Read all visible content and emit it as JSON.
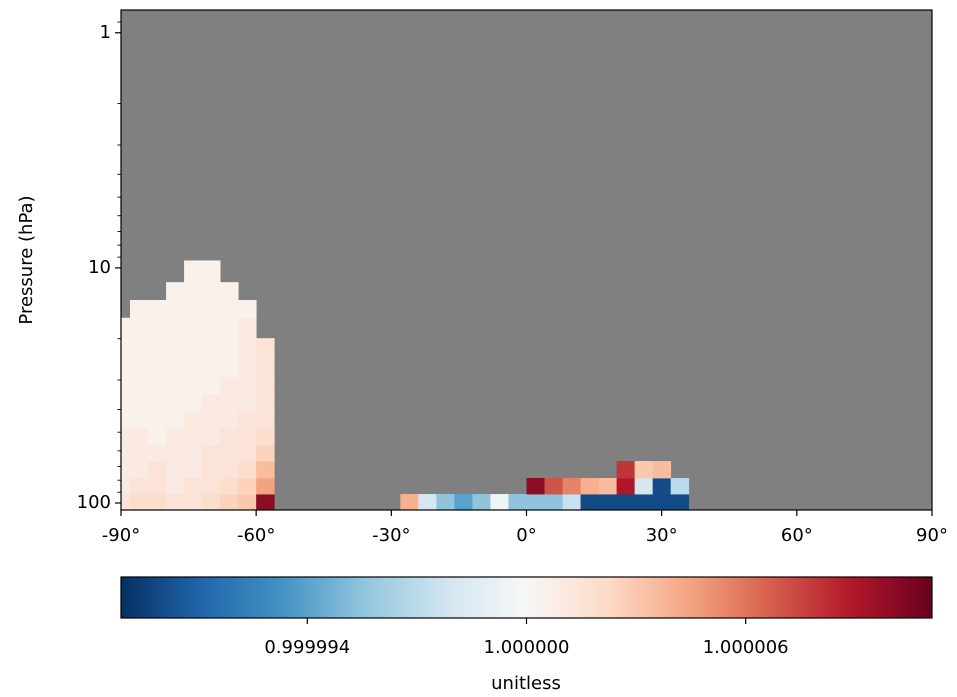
{
  "chart_data": {
    "type": "heatmap",
    "ylabel": "Pressure (hPa)",
    "colorbar_label": "unitless",
    "xlim": [
      -90,
      90
    ],
    "xticks": [
      {
        "value": -90,
        "label": "-90°"
      },
      {
        "value": -60,
        "label": "-60°"
      },
      {
        "value": -30,
        "label": "-30°"
      },
      {
        "value": 0,
        "label": "0°"
      },
      {
        "value": 30,
        "label": "30°"
      },
      {
        "value": 60,
        "label": "60°"
      },
      {
        "value": 90,
        "label": "90°"
      }
    ],
    "ylim": [
      107.1,
      0.8
    ],
    "ylog": true,
    "yticks": [
      1,
      10,
      100
    ],
    "yminorticks": [
      0.9,
      2,
      3,
      4,
      5,
      6,
      7,
      8,
      9,
      20,
      30,
      40,
      50,
      60,
      70,
      80,
      90
    ],
    "nan_color": "#808080",
    "cmap_colors": [
      "#053061",
      "#2166ac",
      "#4393c3",
      "#92c5de",
      "#d1e5f0",
      "#f7f7f7",
      "#fddbc7",
      "#f4a582",
      "#d6604d",
      "#b2182b",
      "#67001f"
    ],
    "clim": [
      0.9999889,
      1.0000111
    ],
    "cticks": [
      0.999994,
      {
        "value": 1,
        "label": "1.000000"
      },
      1.000006
    ],
    "x_edges": [
      -92,
      -88,
      -84,
      -80,
      -76,
      -72,
      -68,
      -64,
      -60,
      -56,
      -52,
      -48,
      -44,
      -40,
      -36,
      -32,
      -28,
      -24,
      -20,
      -16,
      -12,
      -8,
      -4,
      0,
      4,
      8,
      12,
      16,
      20,
      24,
      28,
      32,
      36,
      40,
      44,
      48,
      52,
      56,
      60,
      64,
      68,
      72,
      76,
      80,
      84,
      88,
      92
    ],
    "y_edges": [
      107.1,
      91.6,
      78.3,
      66.3,
      56.6,
      48.0,
      40.6,
      34.4,
      29.1,
      23.9,
      19.9,
      16.3,
      13.7,
      11.5,
      9.3
    ],
    "z": [
      [
        1.0000015,
        1.000002,
        1.000002,
        1.0000015,
        1.0000015,
        1.000002,
        1.0000025,
        1.000003,
        1.00001,
        null,
        null,
        null,
        null,
        null,
        null,
        null,
        1.000004,
        0.999998,
        0.9999955,
        0.999994,
        0.9999955,
        0.9999995,
        0.9999955,
        0.9999955,
        0.9999955,
        0.9999975,
        0.99999,
        0.99999,
        0.99999,
        0.99999,
        0.99999,
        0.99999,
        null,
        null,
        null,
        null,
        null,
        null,
        null,
        null,
        null,
        null,
        null,
        null,
        null,
        null
      ],
      [
        1.000001,
        1.0000015,
        1.0000015,
        1.000001,
        1.0000015,
        1.0000015,
        1.000002,
        1.0000025,
        1.0000045,
        null,
        null,
        null,
        null,
        null,
        null,
        null,
        null,
        null,
        null,
        null,
        null,
        null,
        null,
        1.00001,
        1.000007,
        1.0000055,
        1.000004,
        1.0000035,
        1.000009,
        0.999998,
        0.99999,
        0.999997,
        null,
        null,
        null,
        null,
        null,
        null,
        null,
        null,
        null,
        null,
        null,
        null,
        null,
        null
      ],
      [
        1.000001,
        1.000001,
        1.0000015,
        1.000001,
        1.000001,
        1.0000015,
        1.0000015,
        1.000002,
        1.0000035,
        null,
        null,
        null,
        null,
        null,
        null,
        null,
        null,
        null,
        null,
        null,
        null,
        null,
        null,
        null,
        null,
        null,
        null,
        null,
        1.000008,
        1.000003,
        1.0000035,
        null,
        null,
        null,
        null,
        null,
        null,
        null,
        null,
        null,
        null,
        null,
        null,
        null,
        null,
        null
      ],
      [
        1.000001,
        1.000001,
        1.000001,
        1.000001,
        1.000001,
        1.0000015,
        1.0000015,
        1.0000015,
        1.0000025,
        null,
        null,
        null,
        null,
        null,
        null,
        null,
        null,
        null,
        null,
        null,
        null,
        null,
        null,
        null,
        null,
        null,
        null,
        null,
        null,
        null,
        null,
        null,
        null,
        null,
        null,
        null,
        null,
        null,
        null,
        null,
        null,
        null,
        null,
        null,
        null,
        null
      ],
      [
        1.000001,
        1.000001,
        1.0000005,
        1.000001,
        1.000001,
        1.000001,
        1.0000015,
        1.0000015,
        1.000002,
        null,
        null,
        null,
        null,
        null,
        null,
        null,
        null,
        null,
        null,
        null,
        null,
        null,
        null,
        null,
        null,
        null,
        null,
        null,
        null,
        null,
        null,
        null,
        null,
        null,
        null,
        null,
        null,
        null,
        null,
        null,
        null,
        null,
        null,
        null,
        null,
        null
      ],
      [
        1.0000005,
        1.0000005,
        1.0000005,
        1.0000005,
        1.000001,
        1.000001,
        1.000001,
        1.0000015,
        1.0000015,
        null,
        null,
        null,
        null,
        null,
        null,
        null,
        null,
        null,
        null,
        null,
        null,
        null,
        null,
        null,
        null,
        null,
        null,
        null,
        null,
        null,
        null,
        null,
        null,
        null,
        null,
        null,
        null,
        null,
        null,
        null,
        null,
        null,
        null,
        null,
        null,
        null
      ],
      [
        1.0000005,
        1.0000005,
        1.0000005,
        1.0000005,
        1.0000005,
        1.000001,
        1.000001,
        1.000001,
        1.0000015,
        null,
        null,
        null,
        null,
        null,
        null,
        null,
        null,
        null,
        null,
        null,
        null,
        null,
        null,
        null,
        null,
        null,
        null,
        null,
        null,
        null,
        null,
        null,
        null,
        null,
        null,
        null,
        null,
        null,
        null,
        null,
        null,
        null,
        null,
        null,
        null,
        null
      ],
      [
        1.0000005,
        1.0000005,
        1.0000005,
        1.0000005,
        1.0000005,
        1.0000005,
        1.000001,
        1.000001,
        1.0000015,
        null,
        null,
        null,
        null,
        null,
        null,
        null,
        null,
        null,
        null,
        null,
        null,
        null,
        null,
        null,
        null,
        null,
        null,
        null,
        null,
        null,
        null,
        null,
        null,
        null,
        null,
        null,
        null,
        null,
        null,
        null,
        null,
        null,
        null,
        null,
        null,
        null
      ],
      [
        1.0000005,
        1.0000005,
        1.0000005,
        1.0000005,
        1.0000005,
        1.0000005,
        1.0000005,
        1.000001,
        1.0000015,
        null,
        null,
        null,
        null,
        null,
        null,
        null,
        null,
        null,
        null,
        null,
        null,
        null,
        null,
        null,
        null,
        null,
        null,
        null,
        null,
        null,
        null,
        null,
        null,
        null,
        null,
        null,
        null,
        null,
        null,
        null,
        null,
        null,
        null,
        null,
        null,
        null
      ],
      [
        1.0000005,
        1.0000005,
        1.0000005,
        1.0000005,
        1.0000005,
        1.0000005,
        1.0000005,
        1.000001,
        1.0000015,
        null,
        null,
        null,
        null,
        null,
        null,
        null,
        null,
        null,
        null,
        null,
        null,
        null,
        null,
        null,
        null,
        null,
        null,
        null,
        null,
        null,
        null,
        null,
        null,
        null,
        null,
        null,
        null,
        null,
        null,
        null,
        null,
        null,
        null,
        null,
        null,
        null
      ],
      [
        1.0000005,
        1.0000005,
        1.0000005,
        1.0000005,
        1.0000005,
        1.0000005,
        1.0000005,
        1.000001,
        null,
        null,
        null,
        null,
        null,
        null,
        null,
        null,
        null,
        null,
        null,
        null,
        null,
        null,
        null,
        null,
        null,
        null,
        null,
        null,
        null,
        null,
        null,
        null,
        null,
        null,
        null,
        null,
        null,
        null,
        null,
        null,
        null,
        null,
        null,
        null,
        null,
        null
      ],
      [
        null,
        1.0000005,
        1.0000005,
        1.0000005,
        1.0000005,
        1.0000005,
        1.0000005,
        1.0000005,
        null,
        null,
        null,
        null,
        null,
        null,
        null,
        null,
        null,
        null,
        null,
        null,
        null,
        null,
        null,
        null,
        null,
        null,
        null,
        null,
        null,
        null,
        null,
        null,
        null,
        null,
        null,
        null,
        null,
        null,
        null,
        null,
        null,
        null,
        null,
        null,
        null,
        null
      ],
      [
        null,
        null,
        null,
        1.0000005,
        1.0000005,
        1.0000005,
        1.0000005,
        null,
        null,
        null,
        null,
        null,
        null,
        null,
        null,
        null,
        null,
        null,
        null,
        null,
        null,
        null,
        null,
        null,
        null,
        null,
        null,
        null,
        null,
        null,
        null,
        null,
        null,
        null,
        null,
        null,
        null,
        null,
        null,
        null,
        null,
        null,
        null,
        null,
        null,
        null
      ],
      [
        null,
        null,
        null,
        null,
        1.0000005,
        1.0000005,
        null,
        null,
        null,
        null,
        null,
        null,
        null,
        null,
        null,
        null,
        null,
        null,
        null,
        null,
        null,
        null,
        null,
        null,
        null,
        null,
        null,
        null,
        null,
        null,
        null,
        null,
        null,
        null,
        null,
        null,
        null,
        null,
        null,
        null,
        null,
        null,
        null,
        null,
        null,
        null
      ]
    ]
  }
}
